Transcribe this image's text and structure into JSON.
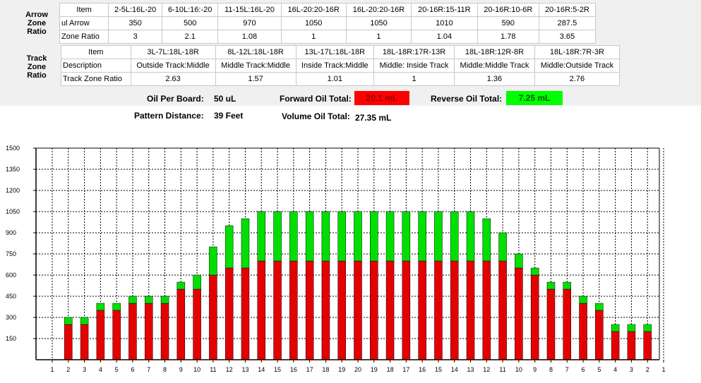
{
  "arrow_zone": {
    "side_label": [
      "Arrow",
      "Zone",
      "Ratio"
    ],
    "headers": [
      "Item",
      "2-5L:16L-20",
      "6-10L:16:-20",
      "11-15L:16L-20",
      "16L-20:20-16R",
      "16L-20:20-16R",
      "20-16R:15-11R",
      "20-16R:10-6R",
      "20-16R:5-2R"
    ],
    "rows": [
      {
        "label": "ul Arrow",
        "values": [
          "350",
          "500",
          "970",
          "1050",
          "1050",
          "1010",
          "590",
          "287.5"
        ]
      },
      {
        "label": "Zone Ratio",
        "values": [
          "3",
          "2.1",
          "1.08",
          "1",
          "1",
          "1.04",
          "1.78",
          "3.65"
        ]
      }
    ]
  },
  "track_zone": {
    "side_label": [
      "Track",
      "Zone",
      "Ratio"
    ],
    "headers": [
      "Item",
      "3L-7L:18L-18R",
      "8L-12L:18L-18R",
      "13L-17L:18L-18R",
      "18L-18R:17R-13R",
      "18L-18R:12R-8R",
      "18L-18R:7R-3R"
    ],
    "rows": [
      {
        "label": "Description",
        "values": [
          "Outside Track:Middle",
          "Middle Track:Middle",
          "Inside Track:Middle",
          "Middle: Inside Track",
          "Middle:Middle Track",
          "Middle:Outside Track"
        ]
      },
      {
        "label": "Track Zone Ratio",
        "values": [
          "2.63",
          "1.57",
          "1.01",
          "1",
          "1.36",
          "2.76"
        ]
      }
    ]
  },
  "summary": {
    "oil_per_board_label": "Oil Per Board:",
    "oil_per_board_value": "50 uL",
    "pattern_distance_label": "Pattern Distance:",
    "pattern_distance_value": "39 Feet",
    "forward_label": "Forward Oil Total:",
    "forward_value": "20.1 mL",
    "reverse_label": "Reverse Oil Total:",
    "reverse_value": "7.25 mL",
    "volume_label": "Volume Oil Total:",
    "volume_value": "27.35 mL"
  },
  "colors": {
    "forward": "#ff0000",
    "reverse": "#00ff00",
    "forward_bar": "#e60000",
    "reverse_bar": "#00e000"
  },
  "chart_data": {
    "type": "bar",
    "stacked": true,
    "categories": [
      "1",
      "2",
      "3",
      "4",
      "5",
      "6",
      "7",
      "8",
      "9",
      "10",
      "11",
      "12",
      "13",
      "14",
      "15",
      "16",
      "17",
      "18",
      "19",
      "20",
      "19",
      "18",
      "17",
      "16",
      "15",
      "14",
      "13",
      "12",
      "11",
      "10",
      "9",
      "8",
      "7",
      "6",
      "5",
      "4",
      "3",
      "2",
      "1"
    ],
    "series": [
      {
        "name": "",
        "color": "#e60000",
        "values": [
          0,
          250,
          250,
          350,
          350,
          400,
          400,
          400,
          500,
          500,
          600,
          650,
          650,
          700,
          700,
          700,
          700,
          700,
          700,
          700,
          700,
          700,
          700,
          700,
          700,
          700,
          700,
          700,
          700,
          650,
          600,
          500,
          500,
          400,
          350,
          200,
          200,
          200,
          0
        ]
      },
      {
        "name": "",
        "color": "#00e000",
        "values": [
          0,
          50,
          50,
          50,
          50,
          50,
          50,
          50,
          50,
          100,
          200,
          300,
          350,
          350,
          350,
          350,
          350,
          350,
          350,
          350,
          350,
          350,
          350,
          350,
          350,
          350,
          350,
          300,
          200,
          100,
          50,
          50,
          50,
          50,
          50,
          50,
          50,
          50,
          0
        ]
      }
    ],
    "yticks": [
      150,
      300,
      450,
      600,
      750,
      900,
      1050,
      1200,
      1350,
      1500
    ],
    "ylim": [
      0,
      1500
    ],
    "grid": true,
    "title": "",
    "xlabel": "",
    "ylabel": ""
  }
}
